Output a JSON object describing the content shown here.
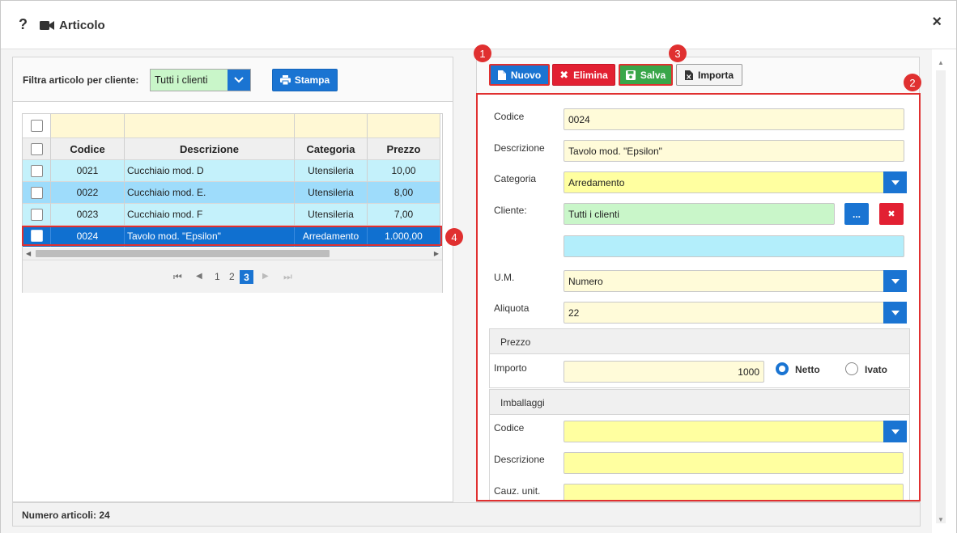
{
  "window": {
    "title": "Articolo",
    "help_glyph": "?",
    "close_glyph": "×"
  },
  "filter": {
    "label": "Filtra articolo per cliente:",
    "value": "Tutti i clienti",
    "print_label": "Stampa"
  },
  "grid": {
    "columns": [
      "Codice",
      "Descrizione",
      "Categoria",
      "Prezzo"
    ],
    "rows": [
      {
        "codice": "0021",
        "descrizione": "Cucchiaio mod. D",
        "categoria": "Utensileria",
        "prezzo": "10,00"
      },
      {
        "codice": "0022",
        "descrizione": "Cucchiaio mod. E.",
        "categoria": "Utensileria",
        "prezzo": "8,00"
      },
      {
        "codice": "0023",
        "descrizione": "Cucchiaio mod. F",
        "categoria": "Utensileria",
        "prezzo": "7,00"
      },
      {
        "codice": "0024",
        "descrizione": "Tavolo mod. \"Epsilon\"",
        "categoria": "Arredamento",
        "prezzo": "1.000,00"
      }
    ],
    "pages": [
      "1",
      "2",
      "3"
    ],
    "current_page": "3"
  },
  "status": {
    "count_text": "Numero articoli: 24"
  },
  "toolbar": {
    "new_label": "Nuovo",
    "delete_label": "Elimina",
    "save_label": "Salva",
    "import_label": "Importa"
  },
  "badges": [
    "1",
    "2",
    "3",
    "4"
  ],
  "form": {
    "codice_label": "Codice",
    "codice_value": "0024",
    "descrizione_label": "Descrizione",
    "descrizione_value": "Tavolo mod. \"Epsilon\"",
    "categoria_label": "Categoria",
    "categoria_value": "Arredamento",
    "cliente_label": "Cliente:",
    "cliente_value": "Tutti i clienti",
    "cliente_browse": "...",
    "cliente_clear": "✖",
    "cliente_notes": "",
    "um_label": "U.M.",
    "um_value": "Numero",
    "aliquota_label": "Aliquota",
    "aliquota_value": "22",
    "prezzo_section": "Prezzo",
    "importo_label": "Importo",
    "importo_value": "1000",
    "netto_label": "Netto",
    "ivato_label": "Ivato",
    "imballaggi_section": "Imballaggi",
    "imb_codice_label": "Codice",
    "imb_codice_value": "",
    "imb_descrizione_label": "Descrizione",
    "imb_descrizione_value": "",
    "cauz_label": "Cauz. unit.",
    "cauz_value": ""
  },
  "colors": {
    "primary": "#1a74d2",
    "danger": "#e22032",
    "success": "#39a649",
    "highlight": "#e03030",
    "row_selected": "#1070d0"
  }
}
